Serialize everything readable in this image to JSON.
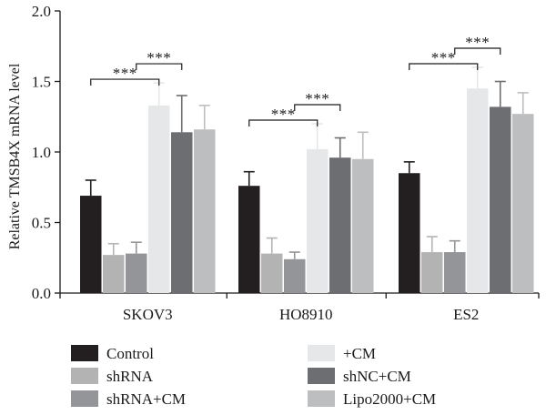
{
  "chart_data": {
    "type": "bar",
    "title": "",
    "xlabel": "",
    "ylabel": "Relative TMSB4X mRNA level",
    "ylim": [
      0,
      2.0
    ],
    "yticks": [
      "0.0",
      "0.5",
      "1.0",
      "1.5",
      "2.0"
    ],
    "categories": [
      "SKOV3",
      "HO8910",
      "ES2"
    ],
    "grid": false,
    "legend_position": "bottom",
    "series": [
      {
        "name": "Control",
        "color": "#231f20",
        "values": [
          0.69,
          0.76,
          0.85
        ],
        "errors": [
          0.11,
          0.1,
          0.08
        ]
      },
      {
        "name": "shRNA",
        "color": "#b3b3b3",
        "values": [
          0.27,
          0.28,
          0.29
        ],
        "errors": [
          0.08,
          0.11,
          0.11
        ]
      },
      {
        "name": "shRNA+CM",
        "color": "#939598",
        "values": [
          0.28,
          0.24,
          0.29
        ],
        "errors": [
          0.08,
          0.05,
          0.08
        ]
      },
      {
        "name": "+CM",
        "color": "#e6e7e8",
        "values": [
          1.33,
          1.02,
          1.45
        ],
        "errors": [
          0.16,
          0.18,
          0.15
        ]
      },
      {
        "name": "shNC+CM",
        "color": "#6d6e71",
        "values": [
          1.14,
          0.96,
          1.32
        ],
        "errors": [
          0.26,
          0.14,
          0.18
        ]
      },
      {
        "name": "Lipo2000+CM",
        "color": "#bcbec0",
        "values": [
          1.16,
          0.95,
          1.27
        ],
        "errors": [
          0.17,
          0.19,
          0.15
        ]
      }
    ],
    "annotations": [
      {
        "category": 0,
        "from_series": 0,
        "to_series": 3,
        "label": "***"
      },
      {
        "category": 0,
        "from_series": 2,
        "to_series": 4,
        "label": "***"
      },
      {
        "category": 1,
        "from_series": 0,
        "to_series": 3,
        "label": "***"
      },
      {
        "category": 1,
        "from_series": 2,
        "to_series": 4,
        "label": "***"
      },
      {
        "category": 2,
        "from_series": 0,
        "to_series": 3,
        "label": "***"
      },
      {
        "category": 2,
        "from_series": 2,
        "to_series": 4,
        "label": "***"
      }
    ]
  }
}
